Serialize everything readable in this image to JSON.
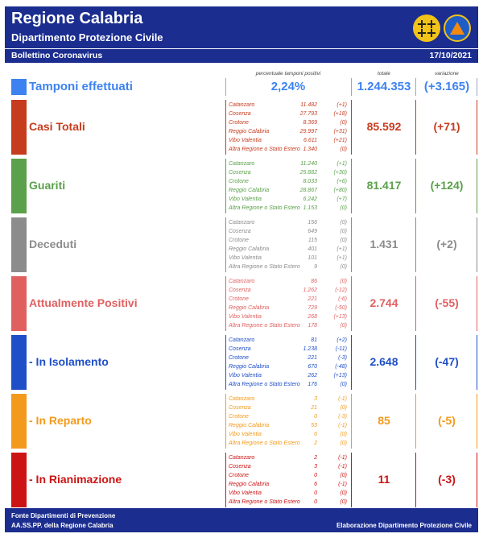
{
  "header": {
    "title": "Regione Calabria",
    "subtitle": "Dipartimento Protezione Civile",
    "bulletin": "Bollettino Coronavirus",
    "date": "17/10/2021"
  },
  "columns": {
    "percent_header": "percentuale tamponi positivi",
    "total_header": "totale",
    "variation_header": "variazione"
  },
  "tamponi": {
    "label": "Tamponi effettuati",
    "percent": "2,24%",
    "total": "1.244.353",
    "variation": "(+3.165)",
    "color": "#3d82f0"
  },
  "sections": [
    {
      "label": "Casi Totali",
      "total": "85.592",
      "variation": "(+71)",
      "color": "#c63c1f",
      "provinces": [
        {
          "name": "Catanzaro",
          "value": "11.482",
          "delta": "(+1)"
        },
        {
          "name": "Cosenza",
          "value": "27.793",
          "delta": "(+18)"
        },
        {
          "name": "Crotone",
          "value": "8.369",
          "delta": "(0)"
        },
        {
          "name": "Reggio Calabria",
          "value": "29.997",
          "delta": "(+31)"
        },
        {
          "name": "Vibo Valentia",
          "value": "6.611",
          "delta": "(+21)"
        },
        {
          "name": "Altra Regione o Stato Estero",
          "value": "1.340",
          "delta": "(0)"
        }
      ]
    },
    {
      "label": "Guariti",
      "total": "81.417",
      "variation": "(+124)",
      "color": "#5ba04a",
      "provinces": [
        {
          "name": "Catanzaro",
          "value": "11.240",
          "delta": "(+1)"
        },
        {
          "name": "Cosenza",
          "value": "25.882",
          "delta": "(+30)"
        },
        {
          "name": "Crotone",
          "value": "8.033",
          "delta": "(+6)"
        },
        {
          "name": "Reggio Calabria",
          "value": "28.867",
          "delta": "(+80)"
        },
        {
          "name": "Vibo Valentia",
          "value": "6.242",
          "delta": "(+7)"
        },
        {
          "name": "Altra Regione o Stato Estero",
          "value": "1.153",
          "delta": "(0)"
        }
      ]
    },
    {
      "label": "Deceduti",
      "total": "1.431",
      "variation": "(+2)",
      "color": "#8c8c8c",
      "provinces": [
        {
          "name": "Catanzaro",
          "value": "156",
          "delta": "(0)"
        },
        {
          "name": "Cosenza",
          "value": "649",
          "delta": "(0)"
        },
        {
          "name": "Crotone",
          "value": "115",
          "delta": "(0)"
        },
        {
          "name": "Reggio Calabria",
          "value": "401",
          "delta": "(+1)"
        },
        {
          "name": "Vibo Valentia",
          "value": "101",
          "delta": "(+1)"
        },
        {
          "name": "Altra Regione o Stato Estero",
          "value": "9",
          "delta": "(0)"
        }
      ]
    },
    {
      "label": "Attualmente Positivi",
      "total": "2.744",
      "variation": "(-55)",
      "color": "#e06060",
      "provinces": [
        {
          "name": "Catanzaro",
          "value": "86",
          "delta": "(0)"
        },
        {
          "name": "Cosenza",
          "value": "1.262",
          "delta": "(-12)"
        },
        {
          "name": "Crotone",
          "value": "221",
          "delta": "(-6)"
        },
        {
          "name": "Reggio Calabria",
          "value": "729",
          "delta": "(-50)"
        },
        {
          "name": "Vibo Valentia",
          "value": "268",
          "delta": "(+13)"
        },
        {
          "name": "Altra Regione o Stato Estero",
          "value": "178",
          "delta": "(0)"
        }
      ]
    },
    {
      "label": "- In Isolamento",
      "total": "2.648",
      "variation": "(-47)",
      "color": "#1f4fc8",
      "provinces": [
        {
          "name": "Catanzaro",
          "value": "81",
          "delta": "(+2)"
        },
        {
          "name": "Cosenza",
          "value": "1.238",
          "delta": "(-11)"
        },
        {
          "name": "Crotone",
          "value": "221",
          "delta": "(-3)"
        },
        {
          "name": "Reggio Calabria",
          "value": "670",
          "delta": "(-48)"
        },
        {
          "name": "Vibo Valentia",
          "value": "262",
          "delta": "(+13)"
        },
        {
          "name": "Altra Regione o Stato Estero",
          "value": "176",
          "delta": "(0)"
        }
      ]
    },
    {
      "label": "- In Reparto",
      "total": "85",
      "variation": "(-5)",
      "color": "#f39a1c",
      "provinces": [
        {
          "name": "Catanzaro",
          "value": "3",
          "delta": "(-1)"
        },
        {
          "name": "Cosenza",
          "value": "21",
          "delta": "(0)"
        },
        {
          "name": "Crotone",
          "value": "0",
          "delta": "(-3)"
        },
        {
          "name": "Reggio Calabria",
          "value": "53",
          "delta": "(-1)"
        },
        {
          "name": "Vibo Valentia",
          "value": "6",
          "delta": "(0)"
        },
        {
          "name": "Altra Regione o Stato Estero",
          "value": "2",
          "delta": "(0)"
        }
      ]
    },
    {
      "label": "- In Rianimazione",
      "total": "11",
      "variation": "(-3)",
      "color": "#cc1414",
      "provinces": [
        {
          "name": "Catanzaro",
          "value": "2",
          "delta": "(-1)"
        },
        {
          "name": "Cosenza",
          "value": "3",
          "delta": "(-1)"
        },
        {
          "name": "Crotone",
          "value": "0",
          "delta": "(0)"
        },
        {
          "name": "Reggio Calabria",
          "value": "6",
          "delta": "(-1)"
        },
        {
          "name": "Vibo Valentia",
          "value": "0",
          "delta": "(0)"
        },
        {
          "name": "Altra Regione o Stato Estero",
          "value": "0",
          "delta": "(0)"
        }
      ]
    }
  ],
  "footer": {
    "line1": "Fonte Dipartimenti di Prevenzione",
    "line2": "AA.SS.PP.  della Regione Calabria",
    "credit": "Elaborazione Dipartimento Protezione Civile"
  }
}
